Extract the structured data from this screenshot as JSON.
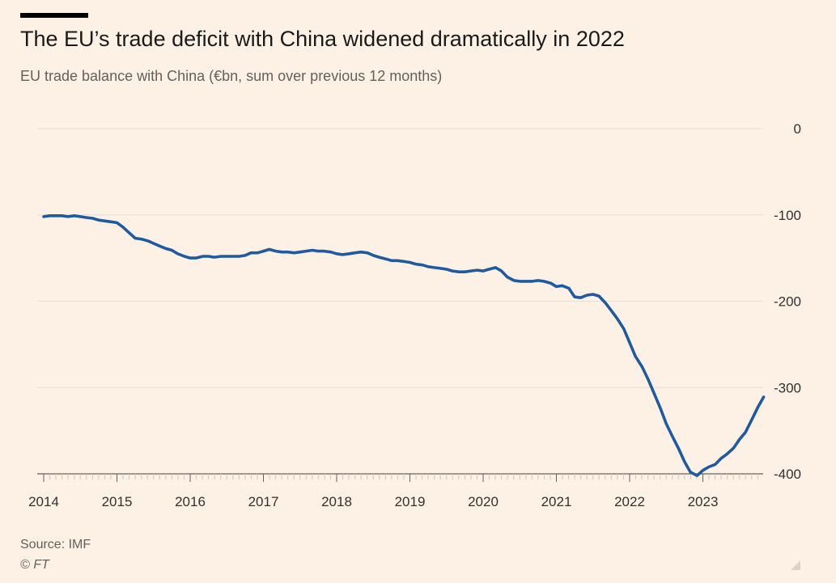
{
  "header": {
    "title": "The EU’s trade deficit with China widened dramatically in 2022",
    "subtitle": "EU trade balance with China (€bn, sum over previous 12 months)"
  },
  "footer": {
    "source": "Source: IMF",
    "credit": "© FT"
  },
  "colors": {
    "background": "#fdf1e6",
    "line": "#1f5aa0",
    "grid": "#e8ddd2",
    "axis": "#66605c",
    "text": "#33302e"
  },
  "chart_data": {
    "type": "line",
    "title": "The EU’s trade deficit with China widened dramatically in 2022",
    "subtitle": "EU trade balance with China (€bn, sum over previous 12 months)",
    "xlabel": "",
    "ylabel": "",
    "xlim": [
      2014.0,
      2023.83
    ],
    "ylim": [
      -400,
      0
    ],
    "y_ticks": [
      0,
      -100,
      -200,
      -300,
      -400
    ],
    "y_tick_labels": [
      "0",
      "-100",
      "-200",
      "-300",
      "-400"
    ],
    "x_ticks": [
      2014,
      2015,
      2016,
      2017,
      2018,
      2019,
      2020,
      2021,
      2022,
      2023
    ],
    "x_tick_labels": [
      "2014",
      "2015",
      "2016",
      "2017",
      "2018",
      "2019",
      "2020",
      "2021",
      "2022",
      "2023"
    ],
    "y_axis_position": "right",
    "grid": true,
    "legend": "none",
    "series": [
      {
        "x": [
          2014.0,
          2014.08,
          2014.17,
          2014.25,
          2014.33,
          2014.42,
          2014.5,
          2014.58,
          2014.67,
          2014.75,
          2014.83,
          2014.92,
          2015.0,
          2015.08,
          2015.17,
          2015.25,
          2015.33,
          2015.42,
          2015.5,
          2015.58,
          2015.67,
          2015.75,
          2015.83,
          2015.92,
          2016.0,
          2016.08,
          2016.17,
          2016.25,
          2016.33,
          2016.42,
          2016.5,
          2016.58,
          2016.67,
          2016.75,
          2016.83,
          2016.92,
          2017.0,
          2017.08,
          2017.17,
          2017.25,
          2017.33,
          2017.42,
          2017.5,
          2017.58,
          2017.67,
          2017.75,
          2017.83,
          2017.92,
          2018.0,
          2018.08,
          2018.17,
          2018.25,
          2018.33,
          2018.42,
          2018.5,
          2018.58,
          2018.67,
          2018.75,
          2018.83,
          2018.92,
          2019.0,
          2019.08,
          2019.17,
          2019.25,
          2019.33,
          2019.42,
          2019.5,
          2019.58,
          2019.67,
          2019.75,
          2019.83,
          2019.92,
          2020.0,
          2020.08,
          2020.17,
          2020.25,
          2020.33,
          2020.42,
          2020.5,
          2020.58,
          2020.67,
          2020.75,
          2020.83,
          2020.92,
          2021.0,
          2021.08,
          2021.17,
          2021.25,
          2021.33,
          2021.42,
          2021.5,
          2021.58,
          2021.67,
          2021.75,
          2021.83,
          2021.92,
          2022.0,
          2022.08,
          2022.17,
          2022.25,
          2022.33,
          2022.42,
          2022.5,
          2022.58,
          2022.67,
          2022.75,
          2022.83,
          2022.92,
          2023.0,
          2023.08,
          2023.17,
          2023.25,
          2023.33,
          2023.42,
          2023.5,
          2023.58,
          2023.67,
          2023.75,
          2023.83
        ],
        "values": [
          -102,
          -101,
          -101,
          -101,
          -102,
          -101,
          -102,
          -103,
          -104,
          -106,
          -107,
          -108,
          -109,
          -114,
          -121,
          -127,
          -128,
          -130,
          -133,
          -136,
          -139,
          -141,
          -145,
          -148,
          -150,
          -150,
          -148,
          -148,
          -149,
          -148,
          -148,
          -148,
          -148,
          -147,
          -144,
          -144,
          -142,
          -140,
          -142,
          -143,
          -143,
          -144,
          -143,
          -142,
          -141,
          -142,
          -142,
          -143,
          -145,
          -146,
          -145,
          -144,
          -143,
          -144,
          -147,
          -149,
          -151,
          -153,
          -153,
          -154,
          -155,
          -157,
          -158,
          -160,
          -161,
          -162,
          -163,
          -165,
          -166,
          -166,
          -165,
          -164,
          -165,
          -163,
          -161,
          -165,
          -172,
          -176,
          -177,
          -177,
          -177,
          -176,
          -177,
          -179,
          -183,
          -182,
          -185,
          -195,
          -196,
          -193,
          -192,
          -194,
          -202,
          -211,
          -220,
          -232,
          -248,
          -264,
          -276,
          -290,
          -306,
          -324,
          -342,
          -356,
          -371,
          -386,
          -398,
          -402,
          -396,
          -392,
          -389,
          -382,
          -377,
          -370,
          -360,
          -352,
          -337,
          -323,
          -311
        ]
      }
    ]
  }
}
